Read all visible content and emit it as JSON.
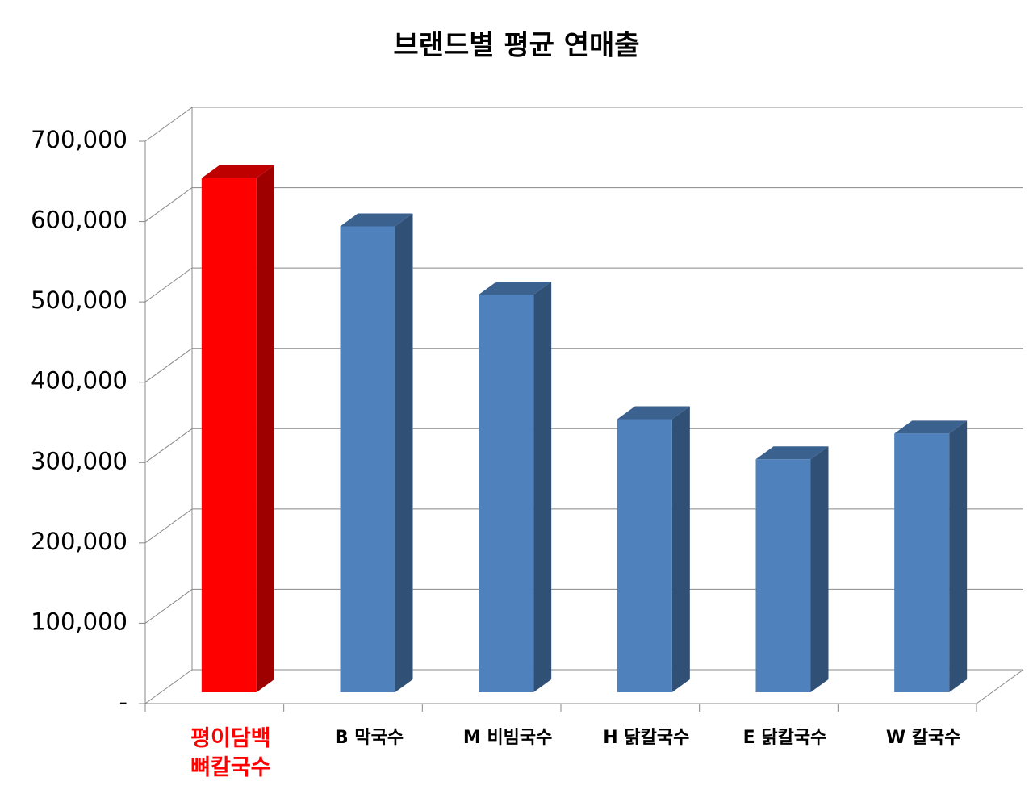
{
  "chart_data": {
    "type": "bar3d",
    "title": "브랜드별 평균 연매출",
    "categories": [
      "평이담백 뼈칼국수",
      "B 막국수",
      "M 비빔국수",
      "H 닭칼국수",
      "E 닭칼국수",
      "W 칼국수"
    ],
    "values": [
      640000,
      580000,
      495000,
      340000,
      290000,
      322000
    ],
    "colors": [
      "#ff0000",
      "#4f81bd",
      "#4f81bd",
      "#4f81bd",
      "#4f81bd",
      "#4f81bd"
    ],
    "label_colors": [
      "#ff0000",
      "#000000",
      "#000000",
      "#000000",
      "#000000",
      "#000000"
    ],
    "ylim": [
      0,
      700000
    ],
    "yticks": [
      {
        "value": 0,
        "label": "-"
      },
      {
        "value": 100000,
        "label": "100,000"
      },
      {
        "value": 200000,
        "label": "200,000"
      },
      {
        "value": 300000,
        "label": "300,000"
      },
      {
        "value": 400000,
        "label": "400,000"
      },
      {
        "value": 500000,
        "label": "500,000"
      },
      {
        "value": 600000,
        "label": "600,000"
      },
      {
        "value": 700000,
        "label": "700,000"
      }
    ],
    "grid": true
  }
}
